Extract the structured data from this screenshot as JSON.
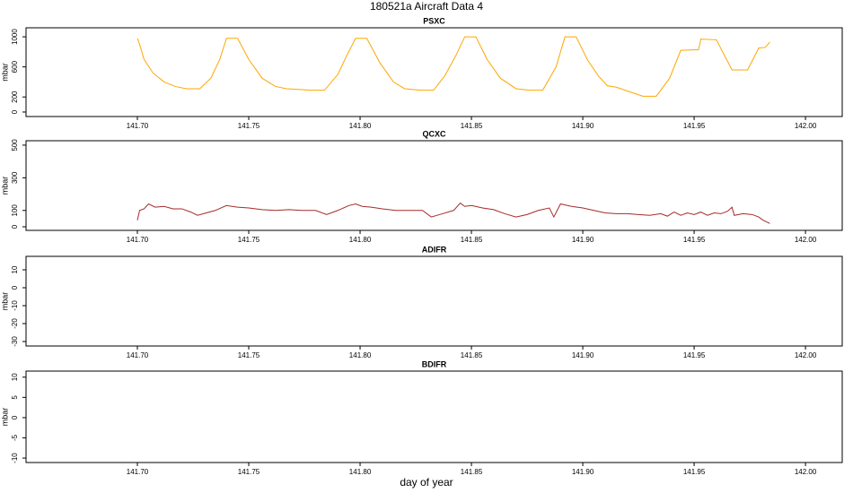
{
  "title": "180521a   Aircraft Data 4",
  "xlabel": "day of year",
  "chart_data": [
    {
      "type": "line",
      "title": "PSXC",
      "ylabel": "mbar",
      "color": "#ffa500",
      "x": [
        141.7,
        141.701,
        141.703,
        141.707,
        141.712,
        141.717,
        141.722,
        141.728,
        141.733,
        141.737,
        141.74,
        141.745,
        141.75,
        141.756,
        141.762,
        141.767,
        141.778,
        141.784,
        141.79,
        141.794,
        141.798,
        141.803,
        141.809,
        141.815,
        141.82,
        141.827,
        141.833,
        141.838,
        141.843,
        141.847,
        141.852,
        141.857,
        141.863,
        141.87,
        141.876,
        141.882,
        141.888,
        141.892,
        141.897,
        141.902,
        141.907,
        141.911,
        141.915,
        141.927,
        141.933,
        141.939,
        141.944,
        141.952,
        141.953,
        141.96,
        141.967,
        141.974,
        141.979,
        141.982,
        141.984
      ],
      "values": [
        980,
        900,
        700,
        520,
        400,
        340,
        310,
        310,
        450,
        700,
        980,
        980,
        700,
        450,
        340,
        310,
        290,
        290,
        500,
        750,
        980,
        980,
        650,
        400,
        310,
        290,
        290,
        480,
        750,
        1000,
        1000,
        700,
        450,
        310,
        290,
        290,
        600,
        1000,
        1000,
        700,
        480,
        350,
        330,
        210,
        210,
        450,
        820,
        830,
        970,
        960,
        560,
        560,
        850,
        860,
        930
      ],
      "xlim": [
        141.65,
        142.0165
      ],
      "xticks": [
        {
          "value": 141.7,
          "label": "141.70"
        },
        {
          "value": 141.75,
          "label": "141.75"
        },
        {
          "value": 141.8,
          "label": "141.80"
        },
        {
          "value": 141.85,
          "label": "141.85"
        },
        {
          "value": 141.9,
          "label": "141.90"
        },
        {
          "value": 141.95,
          "label": "141.95"
        },
        {
          "value": 142,
          "label": "142.00"
        }
      ],
      "ylim": [
        -60,
        1120
      ],
      "yticks": [
        0,
        200,
        600,
        1000
      ]
    },
    {
      "type": "line",
      "title": "QCXC",
      "ylabel": "mbar",
      "color": "#a52a2a",
      "x": [
        141.7,
        141.701,
        141.703,
        141.705,
        141.708,
        141.712,
        141.716,
        141.72,
        141.724,
        141.727,
        141.731,
        141.735,
        141.74,
        141.745,
        141.75,
        141.756,
        141.762,
        141.768,
        141.774,
        141.78,
        141.785,
        141.79,
        141.795,
        141.798,
        141.801,
        141.805,
        141.81,
        141.816,
        141.822,
        141.828,
        141.832,
        141.837,
        141.842,
        141.845,
        141.847,
        141.85,
        141.855,
        141.86,
        141.865,
        141.87,
        141.875,
        141.88,
        141.885,
        141.887,
        141.89,
        141.895,
        141.9,
        141.905,
        141.91,
        141.915,
        141.92,
        141.925,
        141.93,
        141.935,
        141.938,
        141.941,
        141.944,
        141.947,
        141.95,
        141.953,
        141.956,
        141.959,
        141.962,
        141.965,
        141.967,
        141.968,
        141.972,
        141.976,
        141.979,
        141.981,
        141.984
      ],
      "values": [
        40,
        100,
        110,
        140,
        120,
        125,
        110,
        110,
        90,
        70,
        85,
        100,
        130,
        120,
        115,
        105,
        100,
        105,
        100,
        100,
        75,
        100,
        130,
        140,
        125,
        120,
        110,
        100,
        100,
        100,
        60,
        80,
        100,
        145,
        125,
        130,
        115,
        105,
        80,
        60,
        75,
        100,
        115,
        60,
        140,
        125,
        115,
        100,
        85,
        80,
        80,
        75,
        70,
        80,
        65,
        90,
        70,
        85,
        75,
        90,
        70,
        85,
        80,
        95,
        120,
        70,
        80,
        75,
        60,
        40,
        20
      ],
      "xlim": [
        141.65,
        142.0165
      ],
      "xticks": [
        {
          "value": 141.7,
          "label": "141.70"
        },
        {
          "value": 141.75,
          "label": "141.75"
        },
        {
          "value": 141.8,
          "label": "141.80"
        },
        {
          "value": 141.85,
          "label": "141.85"
        },
        {
          "value": 141.9,
          "label": "141.90"
        },
        {
          "value": 141.95,
          "label": "141.95"
        },
        {
          "value": 142,
          "label": "142.00"
        }
      ],
      "ylim": [
        -22,
        527
      ],
      "yticks": [
        0,
        100,
        300,
        500
      ]
    },
    {
      "type": "line",
      "title": "ADIFR",
      "ylabel": "mbar",
      "xlim": [
        141.65,
        142.0165
      ],
      "xticks": [
        {
          "value": 141.7,
          "label": "141.70"
        },
        {
          "value": 141.75,
          "label": "141.75"
        },
        {
          "value": 141.8,
          "label": "141.80"
        },
        {
          "value": 141.85,
          "label": "141.85"
        },
        {
          "value": 141.9,
          "label": "141.90"
        },
        {
          "value": 141.95,
          "label": "141.95"
        },
        {
          "value": 142,
          "label": "142.00"
        }
      ],
      "ylim": [
        -32.5,
        17.5
      ],
      "yticks": [
        -30,
        -20,
        -10,
        0,
        10
      ]
    },
    {
      "type": "line",
      "title": "BDIFR",
      "ylabel": "mbar",
      "xlim": [
        141.65,
        142.0165
      ],
      "xticks": [
        {
          "value": 141.7,
          "label": "141.70"
        },
        {
          "value": 141.75,
          "label": "141.75"
        },
        {
          "value": 141.8,
          "label": "141.80"
        },
        {
          "value": 141.85,
          "label": "141.85"
        },
        {
          "value": 141.9,
          "label": "141.90"
        },
        {
          "value": 141.95,
          "label": "141.95"
        },
        {
          "value": 142,
          "label": "142.00"
        }
      ],
      "ylim": [
        -11.1,
        11.5
      ],
      "yticks": [
        -10,
        -5,
        0,
        5,
        10
      ]
    }
  ]
}
